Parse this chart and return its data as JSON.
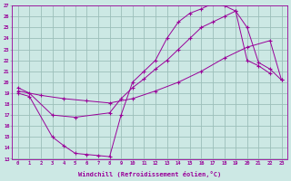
{
  "xlabel": "Windchill (Refroidissement éolien,°C)",
  "xlim": [
    -0.5,
    23.5
  ],
  "ylim": [
    13,
    27
  ],
  "xticks": [
    0,
    1,
    2,
    3,
    4,
    5,
    6,
    7,
    8,
    9,
    10,
    11,
    12,
    13,
    14,
    15,
    16,
    17,
    18,
    19,
    20,
    21,
    22,
    23
  ],
  "yticks": [
    13,
    14,
    15,
    16,
    17,
    18,
    19,
    20,
    21,
    22,
    23,
    24,
    25,
    26,
    27
  ],
  "background_color": "#cce8e4",
  "line_color": "#990099",
  "grid_color": "#9bbfba",
  "series": [
    {
      "x": [
        0,
        1,
        3,
        4,
        5,
        6,
        7,
        8,
        9,
        10,
        11,
        12,
        13,
        14,
        15,
        16,
        17,
        18,
        19,
        20,
        21,
        22,
        23
      ],
      "y": [
        19.0,
        18.7,
        15.0,
        14.2,
        13.5,
        13.4,
        13.3,
        13.2,
        17.0,
        20.0,
        21.0,
        22.0,
        24.0,
        25.5,
        26.3,
        26.7,
        27.2,
        27.0,
        26.5,
        25.0,
        21.8,
        21.2,
        20.2
      ]
    },
    {
      "x": [
        0,
        1,
        3,
        5,
        8,
        9,
        10,
        11,
        12,
        13,
        14,
        15,
        16,
        17,
        18,
        19,
        20,
        21,
        22
      ],
      "y": [
        19.5,
        19.0,
        17.0,
        16.8,
        17.2,
        18.5,
        19.5,
        20.3,
        21.2,
        22.0,
        23.0,
        24.0,
        25.0,
        25.5,
        26.0,
        26.5,
        22.0,
        21.5,
        20.8
      ]
    },
    {
      "x": [
        0,
        2,
        4,
        6,
        8,
        10,
        12,
        14,
        16,
        18,
        20,
        22,
        23
      ],
      "y": [
        19.2,
        18.8,
        18.5,
        18.3,
        18.1,
        18.5,
        19.2,
        20.0,
        21.0,
        22.2,
        23.2,
        23.8,
        20.2
      ]
    }
  ]
}
